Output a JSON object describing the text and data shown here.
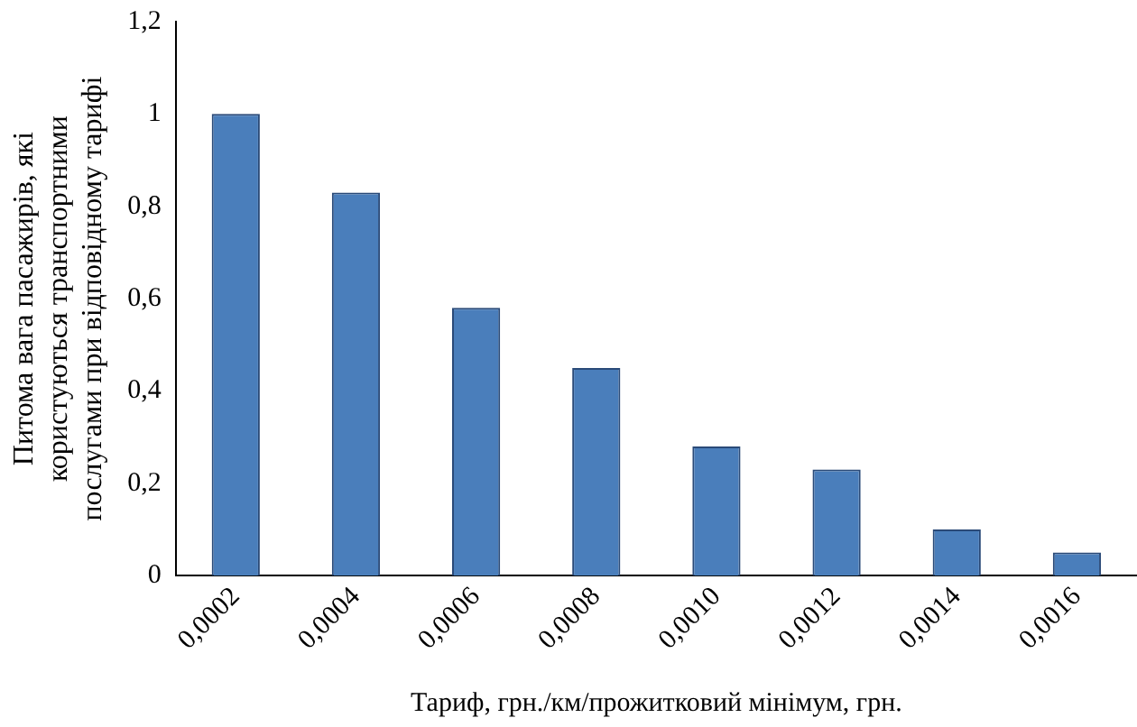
{
  "chart_data": {
    "type": "bar",
    "xlabel": "Тариф, грн./км/прожитковий мінімум, грн.",
    "ylabel": "Питома вага пасажирів, які користуються транспортними послугами при відповідному тарифі",
    "categories": [
      "0,0002",
      "0,0004",
      "0,0006",
      "0,0008",
      "0,0010",
      "0,0012",
      "0,0014",
      "0,0016"
    ],
    "values": [
      1,
      0.83,
      0.58,
      0.45,
      0.28,
      0.23,
      0.1,
      0.05
    ],
    "color": "#4a7ebb",
    "ylim": [
      0,
      1.2
    ],
    "yticks": [
      0,
      {
        "value": 0.2,
        "label": "0,2"
      },
      {
        "value": 0.4,
        "label": "0,4"
      },
      {
        "value": 0.6,
        "label": "0,6"
      },
      {
        "value": 0.8,
        "label": "0,8"
      },
      1,
      {
        "value": 1.2,
        "label": "1,2"
      }
    ],
    "grid": false,
    "legend": false
  }
}
